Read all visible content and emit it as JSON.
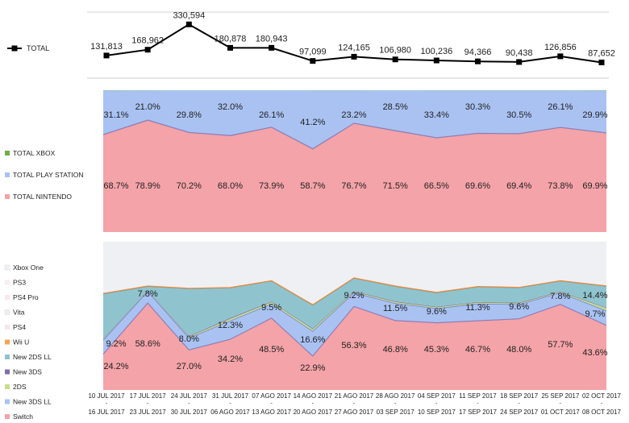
{
  "chart_data": [
    {
      "type": "line",
      "series": [
        {
          "name": "TOTAL",
          "color": "#000000",
          "values": [
            131813,
            168962,
            330594,
            180878,
            180943,
            97099,
            124165,
            106980,
            100236,
            94366,
            90438,
            126856,
            87652
          ],
          "labels": [
            "131,813",
            "168,962",
            "330,594",
            "180,878",
            "180,943",
            "97,099",
            "124,165",
            "106,980",
            "100,236",
            "94,366",
            "90,438",
            "126,856",
            "87,652"
          ]
        }
      ],
      "legend_placement": "left"
    },
    {
      "type": "area",
      "stacked": "percent",
      "series": [
        {
          "name": "TOTAL NINTENDO",
          "color": "#f4a3a8",
          "values": [
            68.7,
            78.9,
            70.2,
            68.0,
            73.9,
            58.7,
            76.7,
            71.5,
            66.5,
            69.6,
            69.4,
            73.8,
            69.9
          ],
          "labels": [
            "68.7%",
            "78.9%",
            "70.2%",
            "68.0%",
            "73.9%",
            "58.7%",
            "76.7%",
            "71.5%",
            "66.5%",
            "69.6%",
            "69.4%",
            "73.8%",
            "69.9%"
          ]
        },
        {
          "name": "TOTAL PLAY STATION",
          "color": "#a9c2f2",
          "values": [
            31.1,
            21.0,
            29.8,
            32.0,
            26.1,
            41.2,
            23.2,
            28.5,
            33.4,
            30.3,
            30.5,
            26.1,
            29.9
          ],
          "labels": [
            "31.1%",
            "21.0%",
            "29.8%",
            "32.0%",
            "26.1%",
            "41.2%",
            "23.2%",
            "28.5%",
            "33.4%",
            "30.3%",
            "30.5%",
            "26.1%",
            "29.9%"
          ]
        },
        {
          "name": "TOTAL XBOX",
          "color": "#70ad47",
          "values": [
            0.2,
            0.1,
            0.0,
            0.0,
            0.0,
            0.1,
            0.1,
            0.0,
            0.1,
            0.1,
            0.1,
            0.1,
            0.2
          ]
        }
      ],
      "legend_placement": "left"
    },
    {
      "type": "area",
      "stacked": "percent",
      "x_start": [
        "10 JUL 2017",
        "17 JUL 2017",
        "24 JUL 2017",
        "31 JUL 2017",
        "07 AGO 2017",
        "14 AGO 2017",
        "21 AGO 2017",
        "28 AGO 2017",
        "04 SEP 2017",
        "11 SEP 2017",
        "18 SEP 2017",
        "25 SEP 2017",
        "02 OCT 2017"
      ],
      "x_end": [
        "16 JUL 2017",
        "23 JUL 2017",
        "30 JUL 2017",
        "06 AGO 2017",
        "13 AGO 2017",
        "20 AGO 2017",
        "27 AGO 2017",
        "03 SEP 2017",
        "10 SEP 2017",
        "17 SEP 2017",
        "24 SEP 2017",
        "01 OCT 2017",
        "08 OCT 2017"
      ],
      "x_separator": "-",
      "series": [
        {
          "name": "Switch",
          "color": "#f4a3a8",
          "values": [
            24.2,
            58.6,
            27.0,
            34.2,
            48.5,
            22.9,
            56.3,
            46.8,
            45.3,
            46.7,
            48.0,
            57.7,
            43.6
          ],
          "labels": [
            "24.2%",
            "58.6%",
            "27.0%",
            "34.2%",
            "48.5%",
            "22.9%",
            "56.3%",
            "46.8%",
            "45.3%",
            "46.7%",
            "48.0%",
            "57.7%",
            "43.6%"
          ]
        },
        {
          "name": "New 3DS LL",
          "color": "#a9c2f2",
          "values": [
            9.2,
            7.8,
            8.0,
            12.3,
            9.5,
            16.6,
            9.2,
            11.5,
            9.6,
            11.3,
            9.6,
            7.8,
            9.7
          ],
          "labels": [
            "9.2%",
            "7.8%",
            "8.0%",
            "12.3%",
            "9.5%",
            "16.6%",
            "9.2%",
            "11.5%",
            "9.6%",
            "11.3%",
            "9.6%",
            "7.8%",
            "9.7%"
          ]
        },
        {
          "name": "2DS",
          "color": "#c5e08a",
          "values": [
            0.8,
            0.6,
            0.8,
            1.5,
            1.2,
            1.5,
            0.8,
            1.0,
            0.8,
            0.9,
            0.8,
            0.6,
            1.8
          ]
        },
        {
          "name": "New 3DS",
          "color": "#7f6fa8",
          "values": [
            0.5,
            0.3,
            0.5,
            0.6,
            0.4,
            0.5,
            0.4,
            0.5,
            0.4,
            0.4,
            0.5,
            0.4,
            0.4
          ]
        },
        {
          "name": "New 2DS LL",
          "color": "#8fc4ce",
          "values": [
            30.1,
            2.5,
            32.0,
            20.2,
            13.8,
            15.7,
            8.6,
            10.0,
            9.4,
            10.2,
            10.0,
            6.9,
            14.4
          ],
          "labels": [
            "",
            "",
            "",
            "",
            "",
            "",
            "",
            "",
            "",
            "",
            "",
            "",
            "14.4%"
          ]
        },
        {
          "name": "Wii U",
          "color": "#f5a455",
          "values": [
            0.3,
            0.3,
            0.3,
            0.3,
            0.3,
            0.3,
            0.3,
            0.3,
            0.3,
            0.3,
            0.3,
            0.3,
            0.3
          ]
        },
        {
          "name": "PS4",
          "color": "#f6e6ee",
          "values": [
            0.0,
            0.0,
            0.0,
            0.0,
            0.0,
            0.0,
            0.0,
            0.0,
            0.0,
            0.0,
            0.0,
            0.0,
            0.0
          ]
        },
        {
          "name": "Vita",
          "color": "#eeeeee",
          "values": [
            0.0,
            0.0,
            0.0,
            0.0,
            0.0,
            0.0,
            0.0,
            0.0,
            0.0,
            0.0,
            0.0,
            0.0,
            0.0
          ]
        },
        {
          "name": "PS4 Pro",
          "color": "#fbe7ef",
          "values": [
            0.0,
            0.0,
            0.0,
            0.0,
            0.0,
            0.0,
            0.0,
            0.0,
            0.0,
            0.0,
            0.0,
            0.0,
            0.0
          ]
        },
        {
          "name": "PS3",
          "color": "#f8eef3",
          "values": [
            0.0,
            0.0,
            0.0,
            0.0,
            0.0,
            0.0,
            0.0,
            0.0,
            0.0,
            0.0,
            0.0,
            0.0,
            0.0
          ]
        },
        {
          "name": "Xbox One",
          "color": "#eff0f4",
          "values": [
            34.9,
            29.9,
            31.4,
            30.9,
            26.3,
            42.5,
            24.4,
            29.9,
            34.3,
            30.2,
            30.8,
            26.3,
            29.8
          ]
        }
      ],
      "legend_placement": "left"
    }
  ]
}
